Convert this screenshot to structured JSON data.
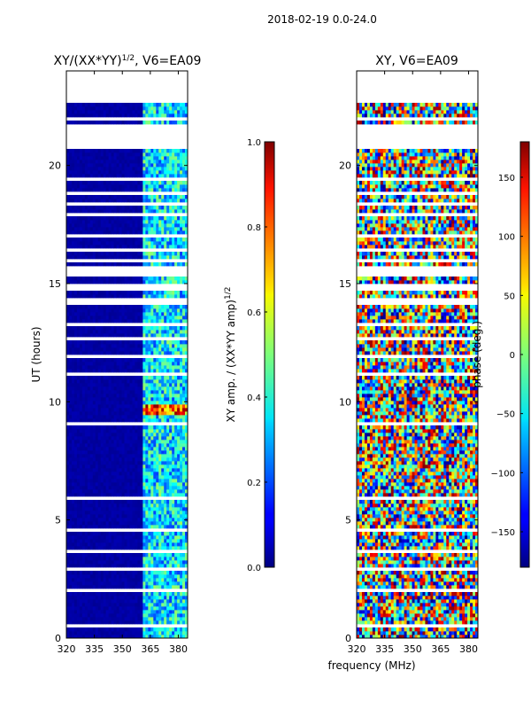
{
  "suptitle": "2018-02-19 0.0-24.0",
  "chart_data": [
    {
      "type": "heatmap",
      "title_main": "XY/(XX*YY)",
      "title_sup": "1/2",
      "title_rest": ", V6=EA09",
      "ylabel": "UT (hours)",
      "xlabel": "",
      "xlim": [
        320,
        385
      ],
      "ylim": [
        0,
        24
      ],
      "xticks": [
        320,
        335,
        350,
        365,
        380
      ],
      "yticks": [
        0,
        5,
        10,
        15,
        20
      ],
      "colorbar": {
        "label_main": "XY amp. / (XX*YY amp)",
        "label_sup": "1/2",
        "range": [
          0.0,
          1.0
        ],
        "ticks": [
          "0.0",
          "0.2",
          "0.4",
          "0.6",
          "0.8",
          "1.0"
        ],
        "colormap": "jet"
      }
    },
    {
      "type": "heatmap",
      "title_main": "XY, V6=EA09",
      "title_sup": "",
      "title_rest": "",
      "ylabel": "",
      "xlabel": "frequency (MHz)",
      "xlim": [
        320,
        385
      ],
      "ylim": [
        0,
        24
      ],
      "xticks": [
        320,
        335,
        350,
        365,
        380
      ],
      "yticks": [
        0,
        5,
        10,
        15,
        20
      ],
      "colorbar": {
        "label_main": "phase (deg.)",
        "range": [
          -180,
          180
        ],
        "ticks": [
          "-150",
          "-100",
          "-50",
          "0",
          "50",
          "100",
          "150"
        ],
        "colormap": "jet"
      }
    }
  ]
}
